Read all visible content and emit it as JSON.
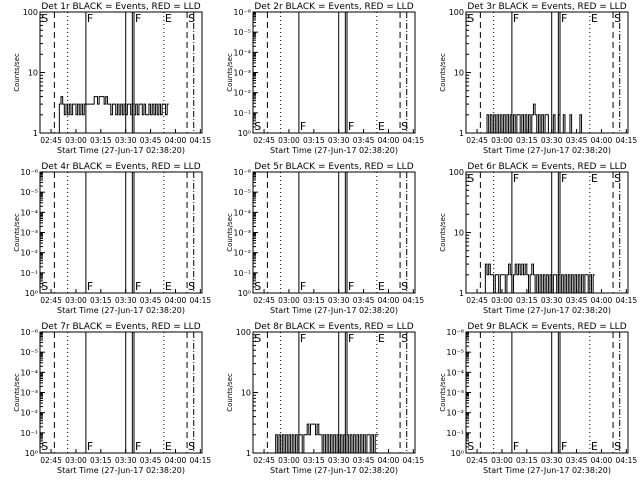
{
  "chart_data": {
    "type": "line",
    "layout": "3x3 grid",
    "x_start_label": "Start Time (27-Jun-17 02:38:20)",
    "x_range": [
      "02:38:20",
      "04:16"
    ],
    "x_ticks": [
      "02:45",
      "03:00",
      "03:15",
      "03:30",
      "03:45",
      "04:00",
      "04:15"
    ],
    "ylabel": "Counts/sec",
    "y_scale": "log",
    "markers": [
      {
        "time": "02:47",
        "style": "dashed"
      },
      {
        "time": "02:55",
        "style": "dotted"
      },
      {
        "time": "03:06",
        "style": "solid"
      },
      {
        "time": "03:30",
        "style": "solid"
      },
      {
        "time": "03:34",
        "style": "solid"
      },
      {
        "time": "03:35",
        "style": "solid"
      },
      {
        "time": "03:53",
        "style": "dotted"
      },
      {
        "time": "04:07",
        "style": "dashed"
      },
      {
        "time": "04:11",
        "style": "dashdot"
      }
    ],
    "marker_labels": [
      {
        "time": "02:38:30",
        "text": "S"
      },
      {
        "time": "03:06",
        "text": "F"
      },
      {
        "time": "03:35",
        "text": "F"
      },
      {
        "time": "03:53",
        "text": "E"
      },
      {
        "time": "04:07",
        "text": "S"
      }
    ],
    "panels": [
      {
        "title": "Det 1r BLACK = Events, RED = LLD",
        "y_ticks": [
          "1",
          "10",
          "100"
        ],
        "ylim": [
          1,
          100
        ],
        "labels_pos": "top",
        "t_start": "02:50",
        "step_min": 1,
        "values": [
          3,
          4,
          3,
          2,
          3,
          2,
          3,
          2,
          3,
          3,
          2,
          3,
          2,
          3,
          2,
          3,
          3,
          3,
          3,
          3,
          3,
          4,
          4,
          3,
          4,
          4,
          4,
          3,
          4,
          3,
          3,
          2,
          3,
          3,
          2,
          3,
          2,
          3,
          2,
          3,
          2,
          3,
          3,
          2,
          3,
          2,
          3,
          2,
          3,
          3,
          2,
          3,
          2,
          2,
          3,
          2,
          3,
          2,
          3,
          2,
          3,
          2,
          3,
          3,
          2,
          3
        ]
      },
      {
        "title": "Det 2r BLACK = Events, RED = LLD",
        "y_ticks": [
          "10⁰",
          "10⁻¹",
          "10⁻²",
          "10⁻³",
          "10⁻⁴",
          "10⁻⁵",
          "10⁻⁶"
        ],
        "labels_pos": "bottom",
        "values": []
      },
      {
        "title": "Det 3r BLACK = Events, RED = LLD",
        "y_ticks": [
          "1",
          "10",
          "100"
        ],
        "ylim": [
          1,
          100
        ],
        "labels_pos": "top",
        "t_start": "02:51",
        "step_min": 1,
        "values": [
          2,
          1,
          2,
          1,
          2,
          1,
          2,
          1,
          2,
          1,
          2,
          1,
          2,
          1,
          2,
          1,
          2,
          1,
          2,
          2,
          1,
          2,
          1,
          2,
          1,
          2,
          1,
          2,
          3,
          2,
          1,
          2,
          1,
          2,
          1,
          2,
          2,
          1,
          1,
          1,
          2,
          1,
          1,
          2,
          1,
          1,
          2,
          1,
          1,
          1,
          2,
          1,
          1,
          1,
          1,
          1,
          2,
          1,
          1,
          1
        ]
      },
      {
        "title": "Det 4r BLACK = Events, RED = LLD",
        "y_ticks": [
          "10⁰",
          "10⁻¹",
          "10⁻²",
          "10⁻³",
          "10⁻⁴",
          "10⁻⁵",
          "10⁻⁶"
        ],
        "labels_pos": "bottom",
        "values": []
      },
      {
        "title": "Det 5r BLACK = Events, RED = LLD",
        "y_ticks": [
          "10⁰",
          "10⁻¹",
          "10⁻²",
          "10⁻³",
          "10⁻⁴",
          "10⁻⁵",
          "10⁻⁶"
        ],
        "labels_pos": "bottom",
        "values": []
      },
      {
        "title": "Det 6r BLACK = Events, RED = LLD",
        "y_ticks": [
          "1",
          "10",
          "100"
        ],
        "ylim": [
          1,
          100
        ],
        "labels_pos": "top",
        "t_start": "02:50",
        "step_min": 1,
        "values": [
          3,
          2,
          3,
          2,
          2,
          1,
          2,
          2,
          1,
          2,
          2,
          2,
          1,
          2,
          3,
          2,
          1,
          2,
          3,
          2,
          3,
          2,
          3,
          2,
          3,
          2,
          1,
          2,
          3,
          2,
          1,
          2,
          1,
          2,
          1,
          2,
          1,
          2,
          1,
          2,
          1,
          2,
          2,
          1,
          2,
          1,
          2,
          1,
          2,
          1,
          2,
          1,
          2,
          1,
          2,
          1,
          2,
          1,
          2,
          1,
          2,
          2,
          1,
          2,
          1,
          2
        ]
      },
      {
        "title": "Det 7r BLACK = Events, RED = LLD",
        "y_ticks": [
          "10⁰",
          "10⁻¹",
          "10⁻²",
          "10⁻³",
          "10⁻⁴",
          "10⁻⁵",
          "10⁻⁶"
        ],
        "labels_pos": "bottom",
        "values": []
      },
      {
        "title": "Det 8r BLACK = Events, RED = LLD",
        "y_ticks": [
          "1",
          "10",
          "100"
        ],
        "ylim": [
          1,
          100
        ],
        "labels_pos": "top",
        "t_start": "02:52",
        "step_min": 1,
        "values": [
          2,
          1,
          2,
          1,
          2,
          1,
          2,
          1,
          2,
          1,
          2,
          1,
          2,
          1,
          2,
          2,
          1,
          2,
          2,
          3,
          2,
          3,
          3,
          3,
          2,
          3,
          2,
          2,
          1,
          2,
          1,
          2,
          1,
          2,
          1,
          2,
          1,
          2,
          1,
          2,
          1,
          2,
          1,
          2,
          1,
          2,
          1,
          2,
          1,
          2,
          1,
          2,
          1,
          2,
          1,
          2,
          2,
          1,
          2,
          1,
          2,
          2
        ]
      },
      {
        "title": "Det 9r BLACK = Events, RED = LLD",
        "y_ticks": [
          "10⁰",
          "10⁻¹",
          "10⁻²",
          "10⁻³",
          "10⁻⁴",
          "10⁻⁵",
          "10⁻⁶"
        ],
        "labels_pos": "bottom",
        "values": []
      }
    ],
    "colors": {
      "events": "#000000",
      "lld": "#ff0000"
    }
  }
}
